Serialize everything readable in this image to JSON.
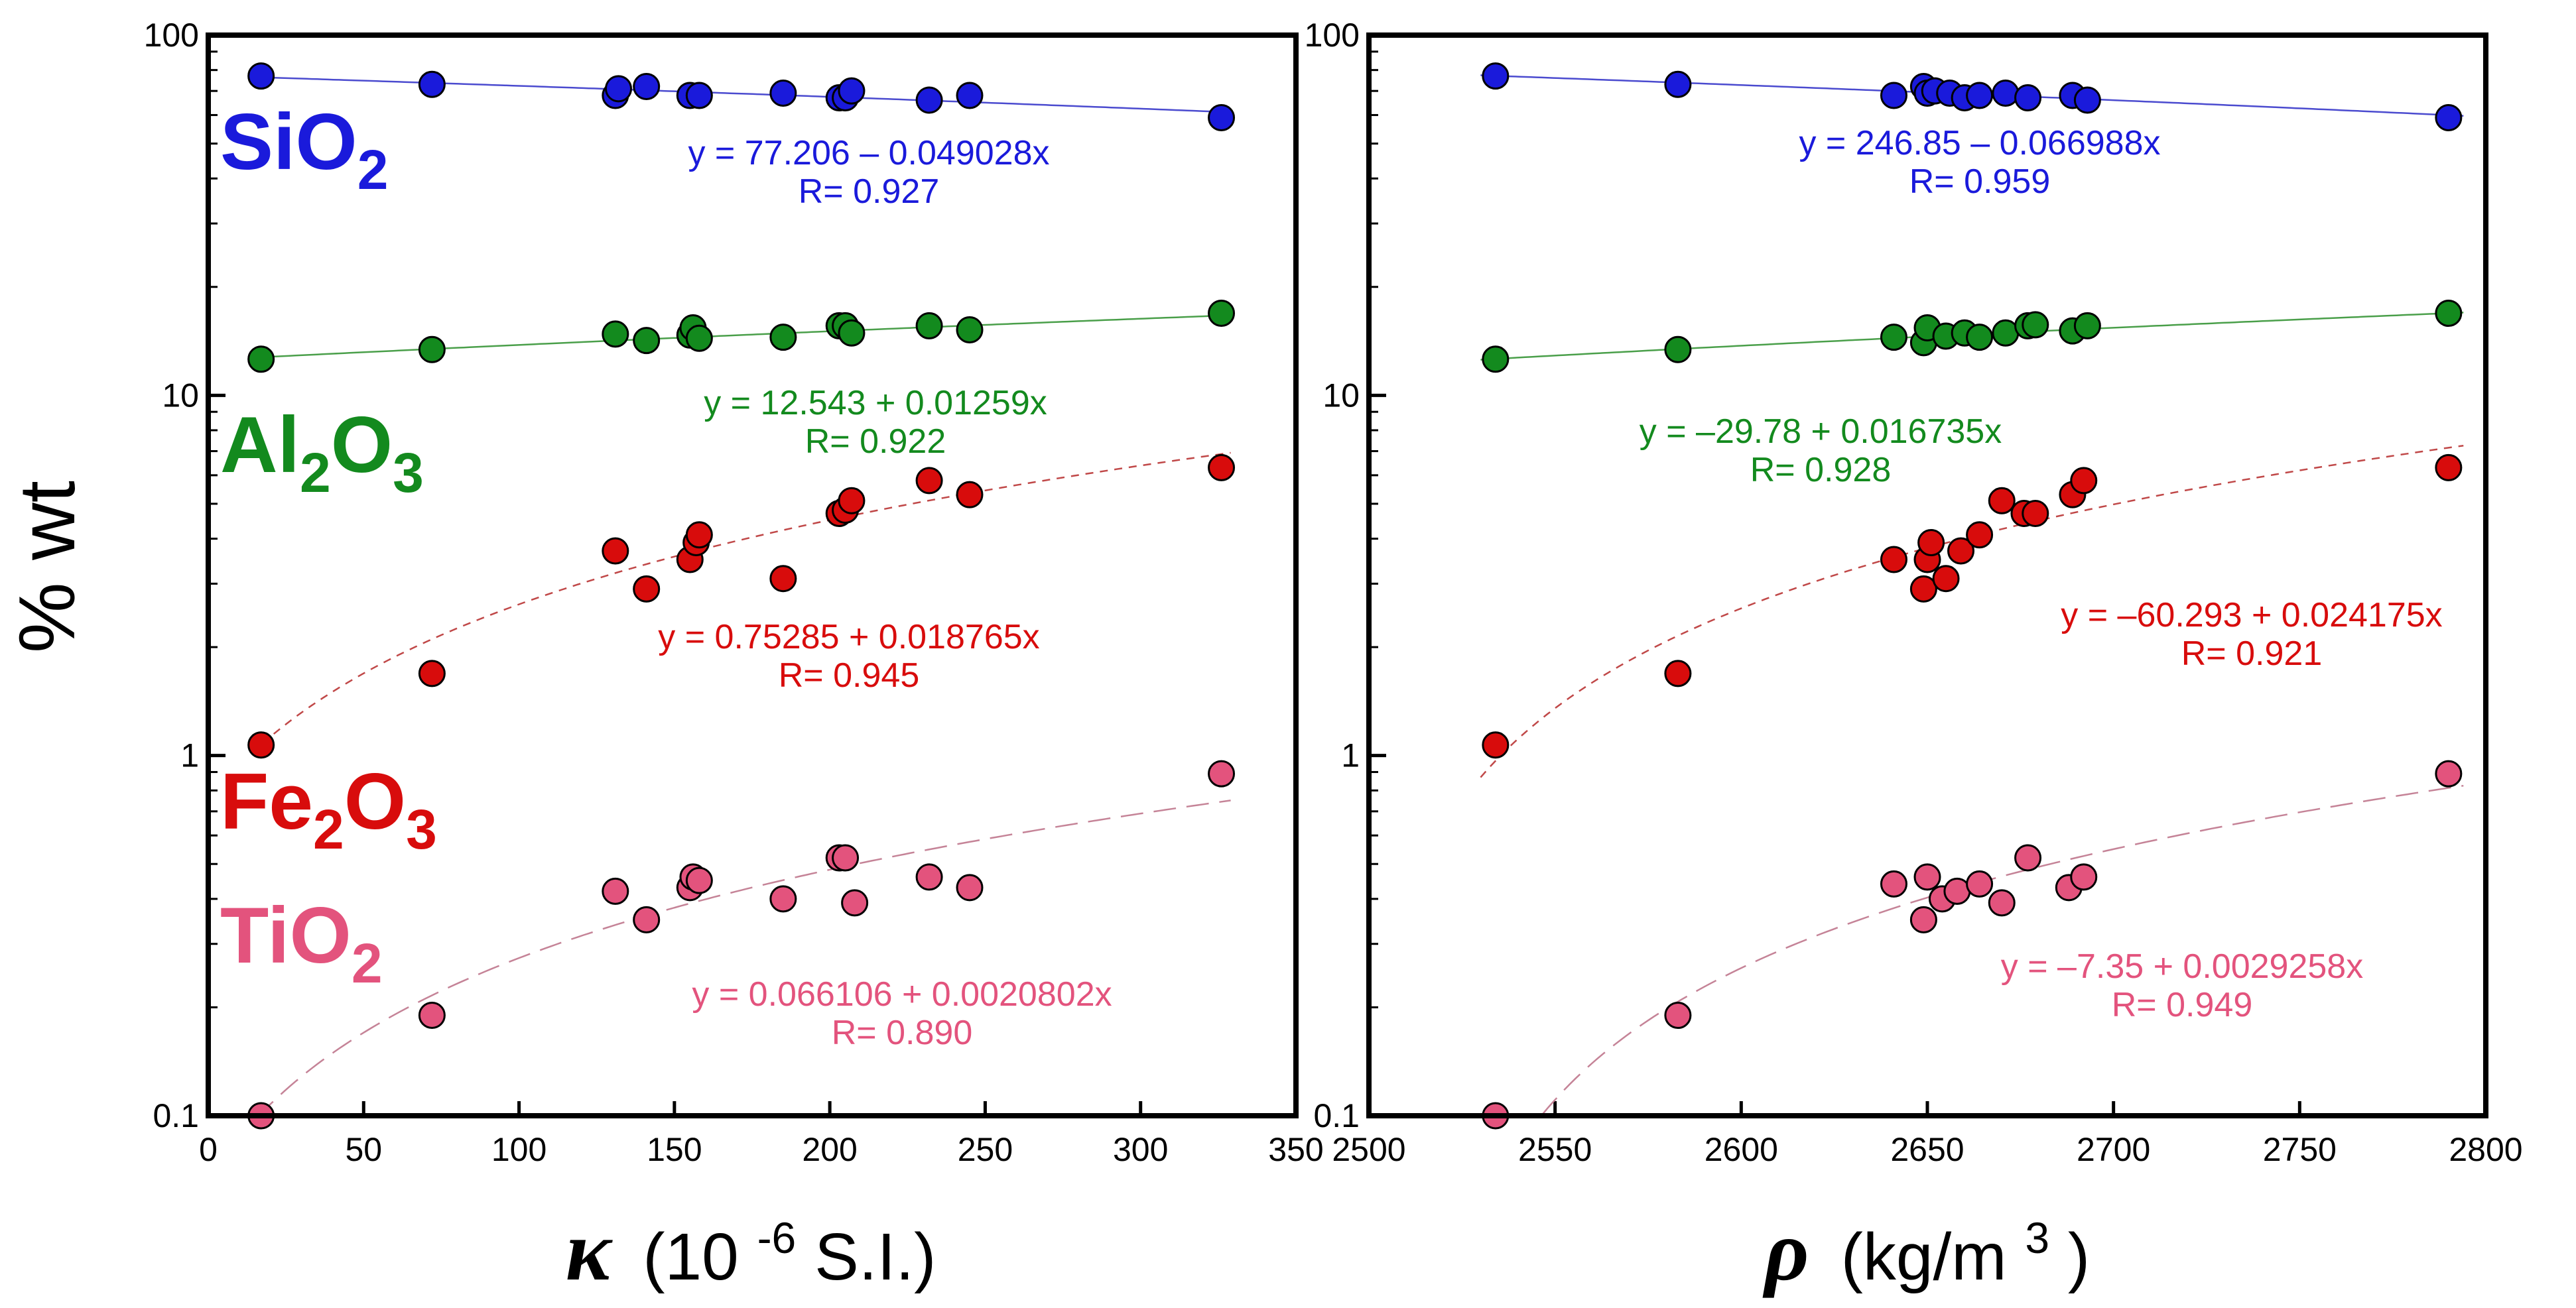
{
  "figure": {
    "ylabel": "% wt"
  },
  "chart_data": [
    {
      "type": "scatter",
      "panel": "left",
      "xlabel_symbol": "κ",
      "xlabel_units": "(10",
      "xlabel_units_exp": "-6",
      "xlabel_units_end": " S.I.)",
      "yscale": "log",
      "xlim": [
        0,
        350
      ],
      "ylim": [
        0.1,
        100
      ],
      "xticks": [
        "0",
        "50",
        "100",
        "150",
        "200",
        "250",
        "300",
        "350"
      ],
      "yticks": [
        "0.1",
        "1",
        "10",
        "100"
      ],
      "series": [
        {
          "name": "SiO2",
          "label_main": "SiO",
          "label_sub1": "2",
          "label_mid": "",
          "label_sub2": "",
          "color": "#1a1adb",
          "line_color": "#4b4bcf",
          "x": [
            17,
            72,
            131,
            132,
            141,
            155,
            158,
            185,
            203,
            205,
            207,
            232,
            245,
            326
          ],
          "y": [
            77,
            73,
            68,
            71,
            72,
            68,
            68,
            69,
            67,
            67,
            70,
            66,
            68,
            59
          ],
          "fit_eq": "y = 77.206 – 0.049028x",
          "fit_r": "R= 0.927",
          "fit": {
            "a": 77.206,
            "b": -0.049028
          }
        },
        {
          "name": "Al2O3",
          "label_main": "Al",
          "label_sub1": "2",
          "label_mid": "O",
          "label_sub2": "3",
          "color": "#138a1e",
          "line_color": "#4a9f4a",
          "x": [
            17,
            72,
            131,
            141,
            155,
            156,
            158,
            185,
            203,
            205,
            207,
            232,
            245,
            326
          ],
          "y": [
            12.6,
            13.4,
            14.8,
            14.2,
            14.7,
            15.4,
            14.4,
            14.5,
            15.6,
            15.6,
            14.9,
            15.6,
            15.2,
            16.9
          ],
          "fit_eq": "y = 12.543 + 0.01259x",
          "fit_r": "R= 0.922",
          "fit": {
            "a": 12.543,
            "b": 0.01259
          }
        },
        {
          "name": "Fe2O3",
          "label_main": "Fe",
          "label_sub1": "2",
          "label_mid": "O",
          "label_sub2": "3",
          "color": "#d80c0c",
          "line_color": "#c04848",
          "x": [
            17,
            72,
            131,
            141,
            155,
            157,
            158,
            185,
            203,
            205,
            207,
            232,
            245,
            326
          ],
          "y": [
            1.07,
            1.69,
            3.7,
            2.9,
            3.5,
            3.9,
            4.1,
            3.1,
            4.7,
            4.8,
            5.1,
            5.8,
            5.3,
            6.3
          ],
          "fit_eq": "y = 0.75285 + 0.018765x",
          "fit_r": "R= 0.945",
          "fit": {
            "a": 0.75285,
            "b": 0.018765
          }
        },
        {
          "name": "TiO2",
          "label_main": "TiO",
          "label_sub1": "2",
          "label_mid": "",
          "label_sub2": "",
          "color": "#e3537d",
          "line_color": "#c58397",
          "x": [
            17,
            72,
            131,
            141,
            155,
            156,
            158,
            185,
            203,
            205,
            208,
            232,
            245,
            326
          ],
          "y": [
            0.1,
            0.19,
            0.42,
            0.35,
            0.43,
            0.46,
            0.45,
            0.4,
            0.52,
            0.52,
            0.39,
            0.46,
            0.43,
            0.89
          ],
          "fit_eq": "y = 0.066106 + 0.0020802x",
          "fit_r": "R= 0.890",
          "fit": {
            "a": 0.066106,
            "b": 0.0020802
          }
        }
      ]
    },
    {
      "type": "scatter",
      "panel": "right",
      "xlabel_symbol": "ρ",
      "xlabel_units": "(kg/m",
      "xlabel_units_exp": "3",
      "xlabel_units_end": ")",
      "yscale": "log",
      "xlim": [
        2500,
        2800
      ],
      "ylim": [
        0.1,
        100
      ],
      "xticks": [
        "2500",
        "2550",
        "2600",
        "2650",
        "2700",
        "2750",
        "2800"
      ],
      "yticks": [
        "0.1",
        "1",
        "10",
        "100"
      ],
      "series": [
        {
          "name": "SiO2",
          "color": "#1a1adb",
          "line_color": "#4b4bcf",
          "x": [
            2534,
            2583,
            2641,
            2649,
            2650,
            2652,
            2656,
            2660,
            2664,
            2671,
            2677,
            2689,
            2693,
            2790
          ],
          "y": [
            77,
            73,
            68,
            72,
            69,
            70,
            69,
            67,
            68,
            69,
            67,
            68,
            66,
            59
          ],
          "fit_eq": "y = 246.85 – 0.066988x",
          "fit_r": "R= 0.959",
          "fit": {
            "a": 246.85,
            "b": -0.066988
          }
        },
        {
          "name": "Al2O3",
          "color": "#138a1e",
          "line_color": "#4a9f4a",
          "x": [
            2534,
            2583,
            2641,
            2649,
            2650,
            2655,
            2660,
            2664,
            2671,
            2677,
            2679,
            2689,
            2693,
            2790
          ],
          "y": [
            12.6,
            13.4,
            14.5,
            14.0,
            15.4,
            14.6,
            14.9,
            14.5,
            14.9,
            15.6,
            15.7,
            15.1,
            15.6,
            16.9
          ],
          "fit_eq": "y = –29.78 + 0.016735x",
          "fit_r": "R= 0.928",
          "fit": {
            "a": -29.78,
            "b": 0.016735
          }
        },
        {
          "name": "Fe2O3",
          "color": "#d80c0c",
          "line_color": "#c04848",
          "x": [
            2534,
            2583,
            2641,
            2649,
            2650,
            2651,
            2655,
            2659,
            2664,
            2670,
            2676,
            2679,
            2689,
            2692,
            2790
          ],
          "y": [
            1.07,
            1.69,
            3.5,
            2.9,
            3.5,
            3.9,
            3.1,
            3.7,
            4.1,
            5.1,
            4.7,
            4.7,
            5.3,
            5.8,
            6.3
          ],
          "fit_eq": "y = –60.293 + 0.024175x",
          "fit_r": "R= 0.921",
          "fit": {
            "a": -60.293,
            "b": 0.024175
          }
        },
        {
          "name": "TiO2",
          "color": "#e3537d",
          "line_color": "#c58397",
          "x": [
            2534,
            2583,
            2641,
            2649,
            2650,
            2654,
            2658,
            2664,
            2670,
            2677,
            2688,
            2692,
            2790
          ],
          "y": [
            0.1,
            0.19,
            0.44,
            0.35,
            0.46,
            0.4,
            0.42,
            0.44,
            0.39,
            0.52,
            0.43,
            0.46,
            0.89
          ],
          "fit_eq": "y = –7.35 + 0.0029258x",
          "fit_r": "R= 0.949",
          "fit": {
            "a": -7.35,
            "b": 0.0029258
          }
        }
      ]
    }
  ]
}
